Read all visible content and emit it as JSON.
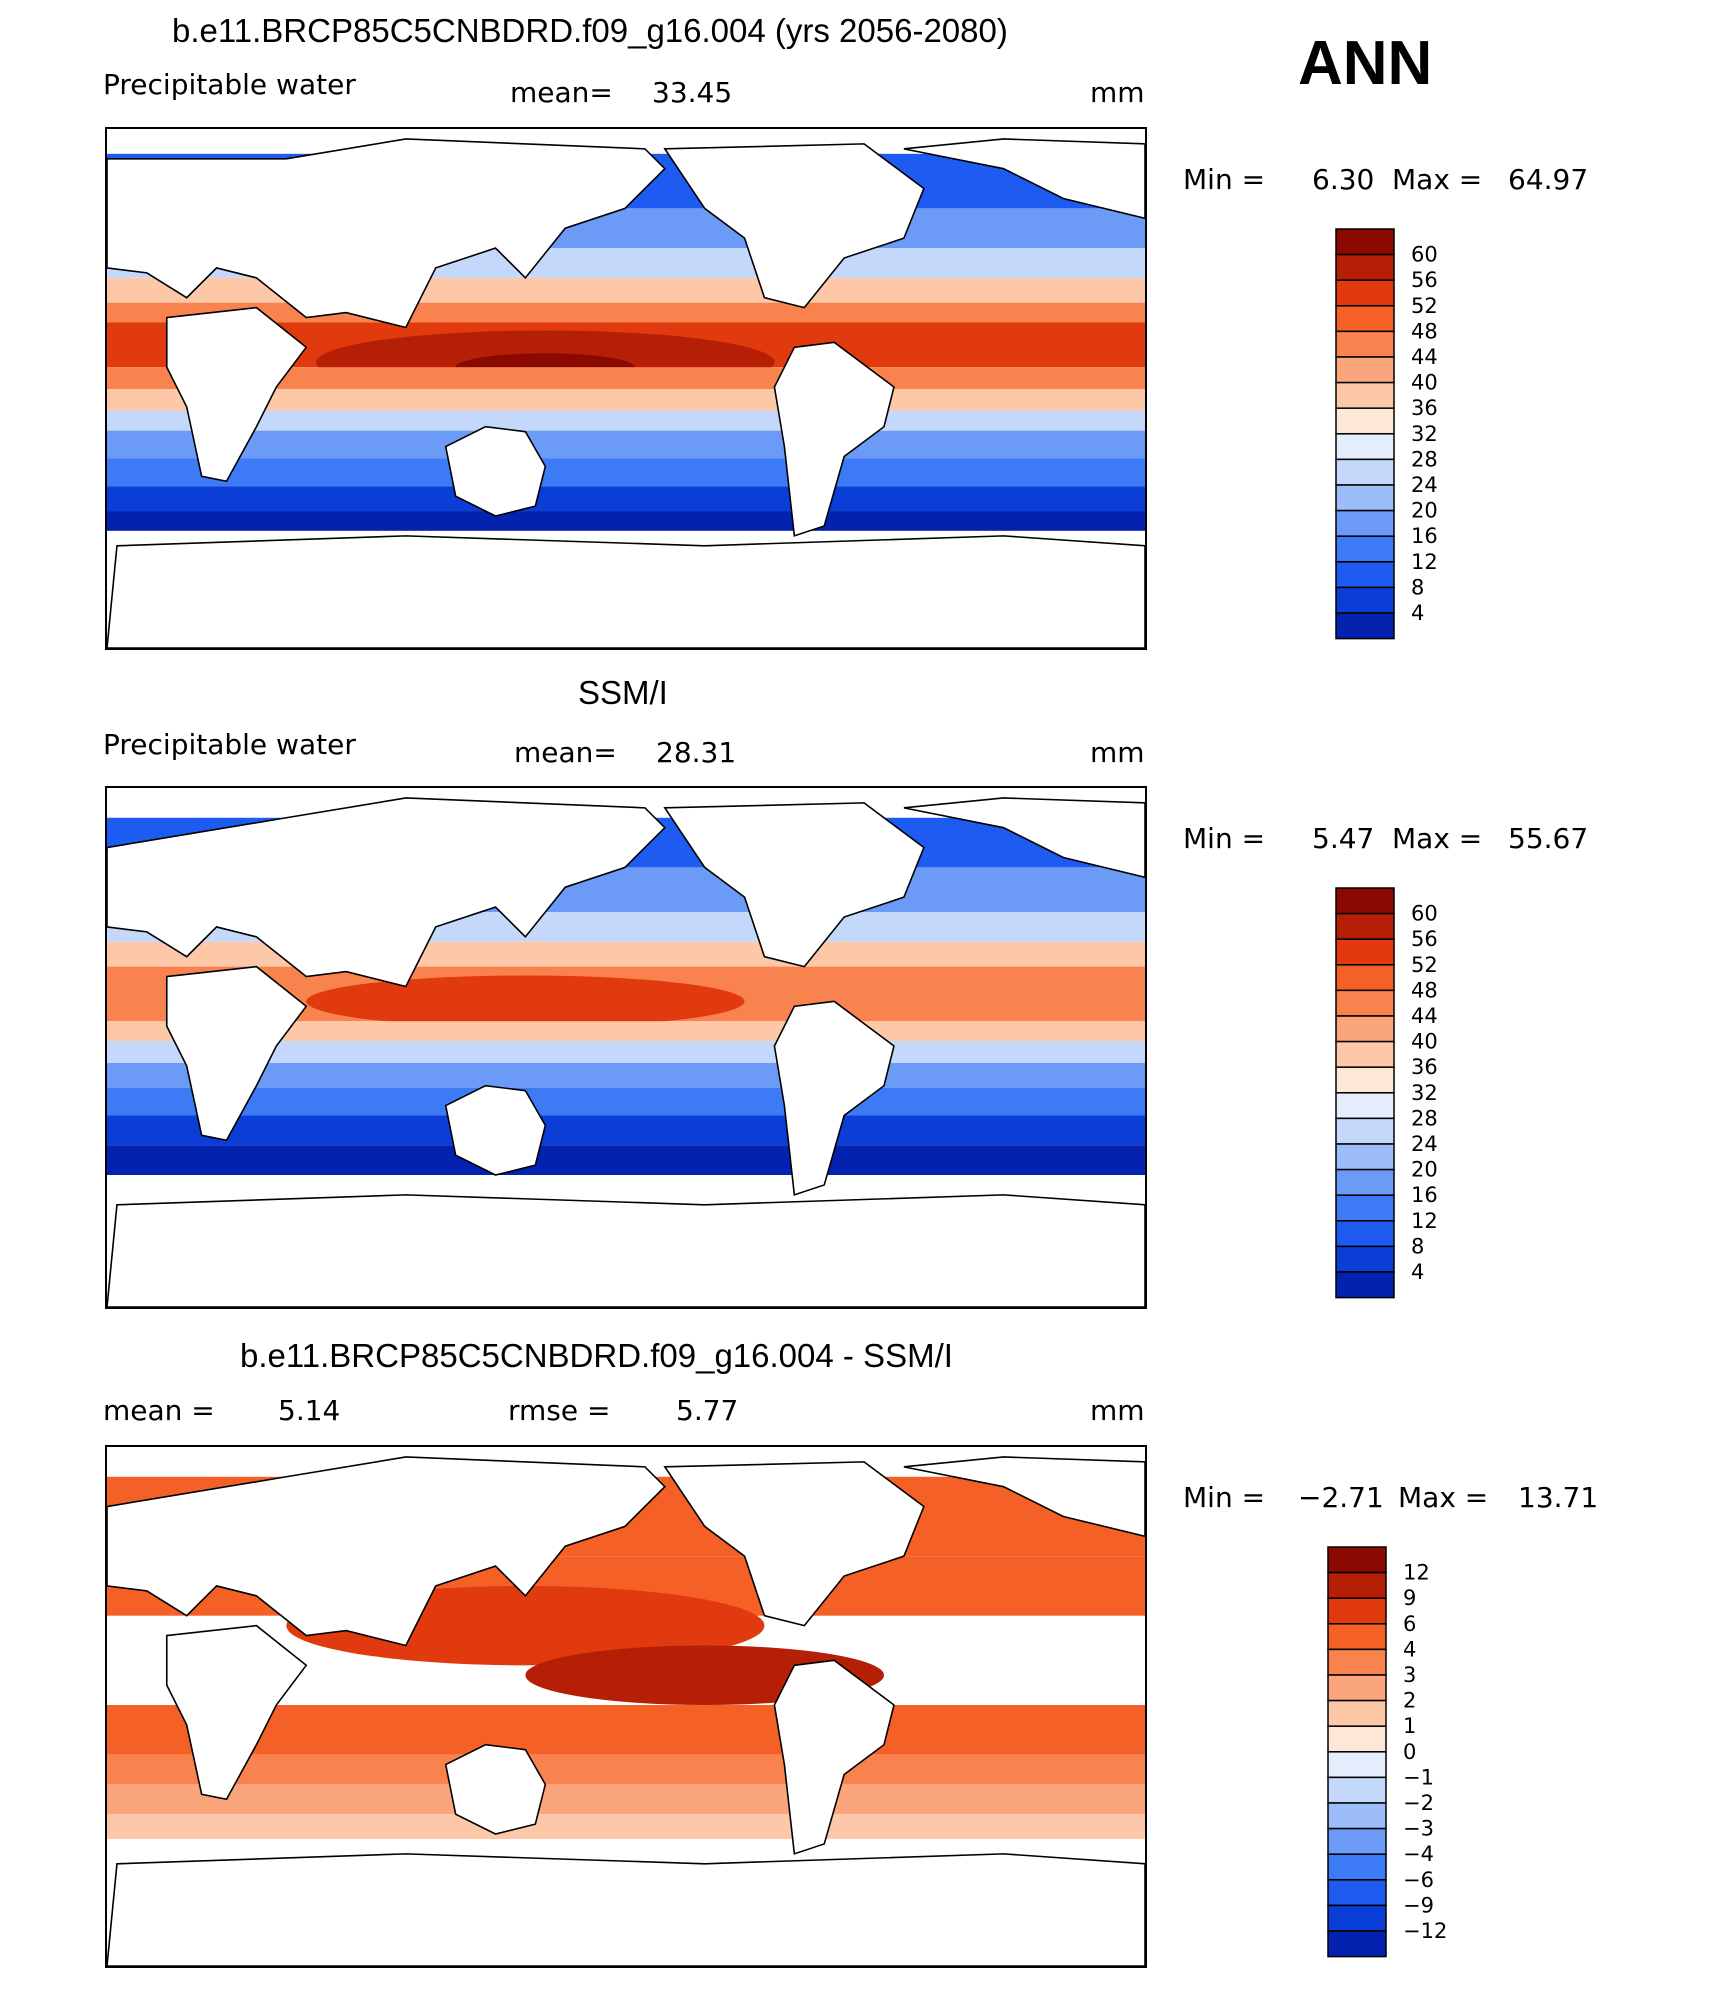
{
  "season": "ANN",
  "colors": {
    "abs_scale": [
      "#000d80",
      "#0322b0",
      "#0a3ed6",
      "#1e5bf0",
      "#3d7af5",
      "#6b9af7",
      "#9dbdfa",
      "#c4d8fb",
      "#e3edfc",
      "#fde7d7",
      "#fcc8a8",
      "#fba57c",
      "#f9834f",
      "#f56027",
      "#e03a0e",
      "#b51f06",
      "#8a0a02"
    ],
    "diff_scale": [
      "#000d80",
      "#0322b0",
      "#0a3ed6",
      "#1e5bf0",
      "#3d7af5",
      "#6b9af7",
      "#9dbdfa",
      "#c4d8fb",
      "#e3edfc",
      "#fde7d7",
      "#fcc8a8",
      "#fba57c",
      "#f9834f",
      "#f56027",
      "#e03a0e",
      "#b51f06",
      "#8a0a02"
    ]
  },
  "panels": [
    {
      "title": "b.e11.BRCP85C5CNBDRD.f09_g16.004 (yrs 2056-2080)",
      "variable": "Precipitable water",
      "stat1_label": "mean=",
      "stat1_value": "33.45",
      "stat2_label": "",
      "stat2_value": "",
      "units": "mm",
      "min_label": "Min =",
      "min_value": "6.30",
      "max_label": "Max =",
      "max_value": "64.97",
      "colorbar_labels": [
        "60",
        "56",
        "52",
        "48",
        "44",
        "40",
        "36",
        "32",
        "28",
        "24",
        "20",
        "16",
        "12",
        "8",
        "4"
      ]
    },
    {
      "title": "SSM/I",
      "variable": "Precipitable water",
      "stat1_label": "mean=",
      "stat1_value": "28.31",
      "stat2_label": "",
      "stat2_value": "",
      "units": "mm",
      "min_label": "Min =",
      "min_value": "5.47",
      "max_label": "Max =",
      "max_value": "55.67",
      "colorbar_labels": [
        "60",
        "56",
        "52",
        "48",
        "44",
        "40",
        "36",
        "32",
        "28",
        "24",
        "20",
        "16",
        "12",
        "8",
        "4"
      ]
    },
    {
      "title": "b.e11.BRCP85C5CNBDRD.f09_g16.004 - SSM/I",
      "variable": "",
      "stat1_label": "mean =",
      "stat1_value": "5.14",
      "stat2_label": "rmse =",
      "stat2_value": "5.77",
      "units": "mm",
      "min_label": "Min =",
      "min_value": "−2.71",
      "max_label": "Max =",
      "max_value": "13.71",
      "colorbar_labels": [
        "12",
        "9",
        "6",
        "4",
        "3",
        "2",
        "1",
        "0",
        "−1",
        "−2",
        "−3",
        "−4",
        "−6",
        "−9",
        "−12"
      ]
    }
  ]
}
